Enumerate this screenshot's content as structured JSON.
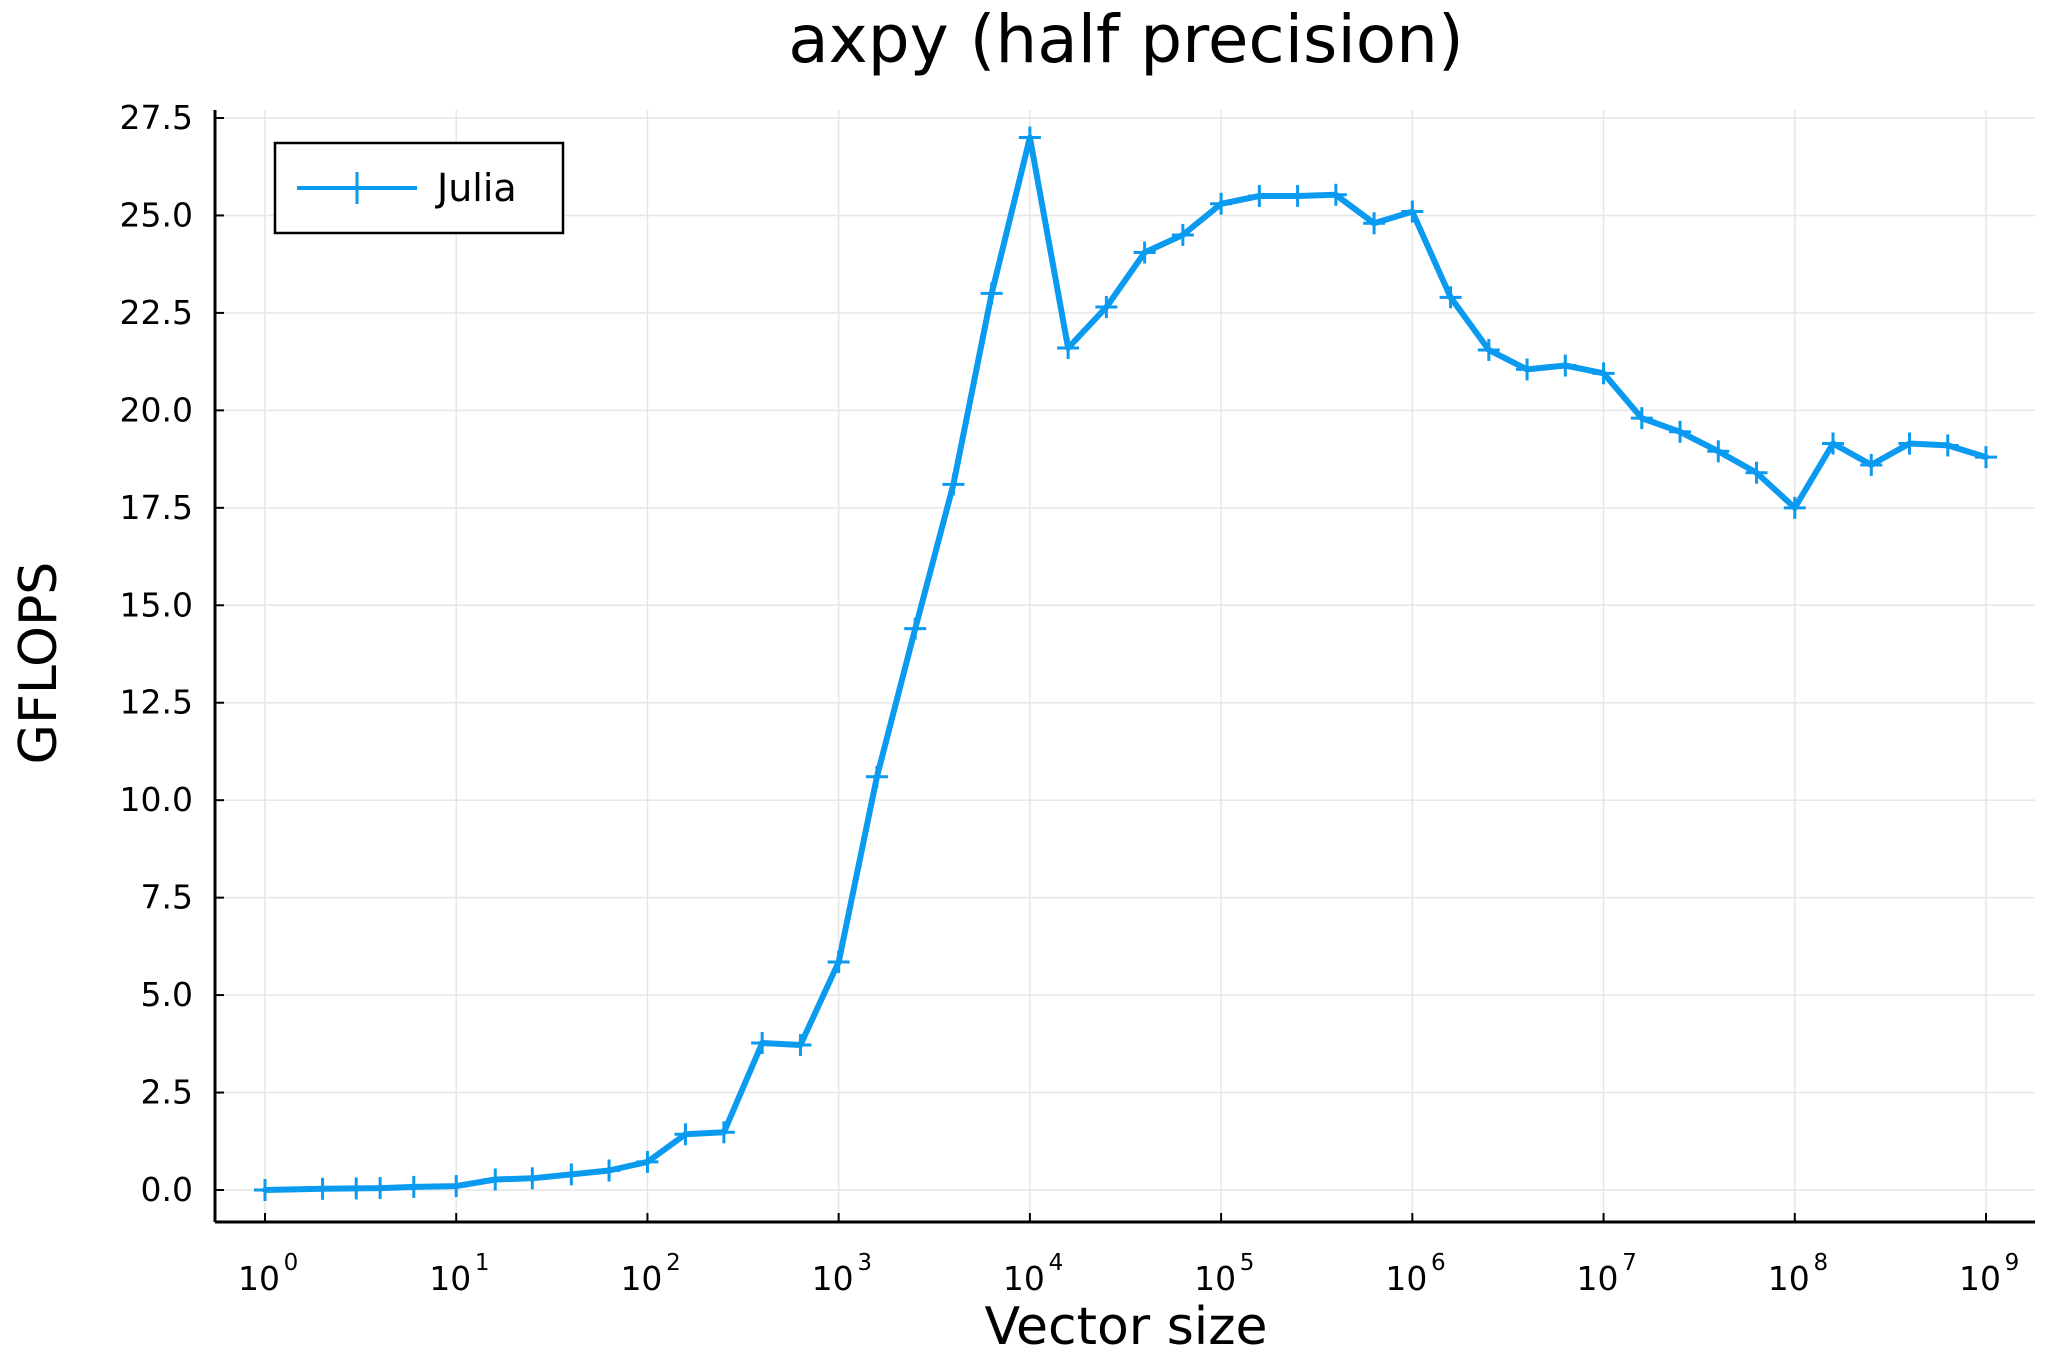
{
  "chart_data": {
    "type": "line",
    "title": "axpy (half precision)",
    "xlabel": "Vector size",
    "ylabel": "GFLOPS",
    "x_scale": "log10",
    "xlim": [
      1,
      1000000000
    ],
    "ylim": [
      0,
      27.5
    ],
    "x_ticks": [
      {
        "base": "10",
        "exp": "0",
        "value": 1
      },
      {
        "base": "10",
        "exp": "1",
        "value": 10
      },
      {
        "base": "10",
        "exp": "2",
        "value": 100
      },
      {
        "base": "10",
        "exp": "3",
        "value": 1000
      },
      {
        "base": "10",
        "exp": "4",
        "value": 10000
      },
      {
        "base": "10",
        "exp": "5",
        "value": 100000
      },
      {
        "base": "10",
        "exp": "6",
        "value": 1000000
      },
      {
        "base": "10",
        "exp": "7",
        "value": 10000000
      },
      {
        "base": "10",
        "exp": "8",
        "value": 100000000
      },
      {
        "base": "10",
        "exp": "9",
        "value": 1000000000
      }
    ],
    "y_ticks": [
      {
        "label": "0.0",
        "value": 0
      },
      {
        "label": "2.5",
        "value": 2.5
      },
      {
        "label": "5.0",
        "value": 5
      },
      {
        "label": "7.5",
        "value": 7.5
      },
      {
        "label": "10.0",
        "value": 10
      },
      {
        "label": "12.5",
        "value": 12.5
      },
      {
        "label": "15.0",
        "value": 15
      },
      {
        "label": "17.5",
        "value": 17.5
      },
      {
        "label": "20.0",
        "value": 20
      },
      {
        "label": "22.5",
        "value": 22.5
      },
      {
        "label": "25.0",
        "value": 25
      },
      {
        "label": "27.5",
        "value": 27.5
      }
    ],
    "grid": true,
    "legend_position": "top-left",
    "series": [
      {
        "name": "Julia",
        "color": "#0a9af0",
        "marker": "plus",
        "x": [
          1,
          2,
          3,
          4,
          6,
          10,
          16,
          25,
          40,
          63,
          100,
          158,
          251,
          398,
          631,
          1000,
          1585,
          2512,
          3981,
          6310,
          10000,
          15849,
          25119,
          39811,
          63096,
          100000,
          158489,
          251189,
          398107,
          630957,
          1000000,
          1584893,
          2511886,
          3981072,
          6309573,
          10000000,
          15848932,
          25118864,
          39810717,
          63095734,
          100000000,
          158489319,
          251188643,
          398107171,
          630957344,
          1000000000
        ],
        "y": [
          0.0,
          0.03,
          0.04,
          0.05,
          0.08,
          0.1,
          0.27,
          0.3,
          0.4,
          0.5,
          0.72,
          1.43,
          1.48,
          3.77,
          3.72,
          5.85,
          10.6,
          14.4,
          18.1,
          23.0,
          27.0,
          21.6,
          22.65,
          24.05,
          24.5,
          25.3,
          25.5,
          25.5,
          25.53,
          24.8,
          25.1,
          22.9,
          21.55,
          21.05,
          21.15,
          20.95,
          19.8,
          19.45,
          18.95,
          18.4,
          17.5,
          19.15,
          18.6,
          19.15,
          19.1,
          18.8
        ]
      }
    ]
  }
}
